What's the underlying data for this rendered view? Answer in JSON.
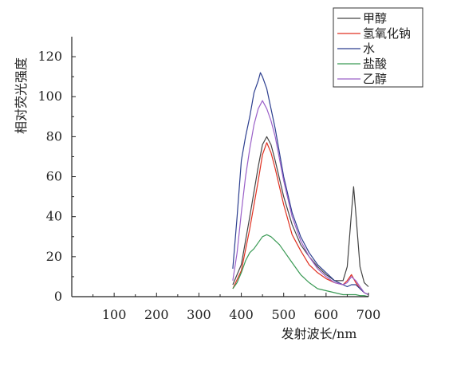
{
  "chart_data": {
    "type": "line",
    "title": "",
    "xlabel": "发射波长/nm",
    "ylabel": "相对荧光强度",
    "xlim": [
      0,
      700
    ],
    "ylim": [
      0,
      130
    ],
    "xticks": [
      100,
      200,
      300,
      400,
      500,
      600,
      700
    ],
    "yticks": [
      0,
      20,
      40,
      60,
      80,
      100,
      120
    ],
    "grid": false,
    "legend_position": "top-right",
    "series": [
      {
        "name": "甲醇",
        "color": "#444444",
        "x": [
          380,
          400,
          420,
          440,
          450,
          460,
          470,
          480,
          500,
          520,
          540,
          560,
          580,
          600,
          620,
          640,
          650,
          660,
          665,
          670,
          680,
          690,
          700
        ],
        "y": [
          6,
          16,
          40,
          65,
          76,
          80,
          76,
          68,
          50,
          36,
          26,
          20,
          15,
          11,
          8,
          8,
          15,
          42,
          55,
          42,
          15,
          7,
          5
        ]
      },
      {
        "name": "氢氧化钠",
        "color": "#e03020",
        "x": [
          380,
          400,
          420,
          440,
          450,
          460,
          470,
          480,
          500,
          520,
          540,
          560,
          580,
          600,
          620,
          640,
          650,
          660,
          670,
          680,
          690,
          700
        ],
        "y": [
          4,
          13,
          34,
          58,
          71,
          77,
          72,
          64,
          46,
          31,
          23,
          16,
          12,
          9,
          7,
          6,
          8,
          11,
          7,
          4,
          2,
          1
        ]
      },
      {
        "name": "水",
        "color": "#2c3e8f",
        "x": [
          380,
          390,
          400,
          410,
          420,
          430,
          440,
          445,
          450,
          460,
          470,
          480,
          500,
          520,
          540,
          560,
          580,
          600,
          620,
          640,
          650,
          660,
          670,
          680,
          690,
          700
        ],
        "y": [
          14,
          40,
          68,
          80,
          90,
          102,
          108,
          112,
          110,
          104,
          94,
          84,
          60,
          42,
          30,
          22,
          16,
          12,
          8,
          6,
          5,
          6,
          6,
          4,
          2,
          1
        ]
      },
      {
        "name": "盐酸",
        "color": "#3a9a55",
        "x": [
          380,
          390,
          400,
          410,
          420,
          430,
          440,
          450,
          460,
          470,
          480,
          490,
          500,
          520,
          540,
          560,
          580,
          600,
          620,
          640,
          650,
          660,
          670,
          680,
          690,
          700
        ],
        "y": [
          4,
          7,
          12,
          18,
          22,
          24,
          27,
          30,
          31,
          30,
          28,
          26,
          23,
          17,
          11,
          7,
          4,
          3,
          2,
          1,
          1,
          1,
          1,
          0.5,
          0.5,
          0
        ]
      },
      {
        "name": "乙醇",
        "color": "#9a60c8",
        "x": [
          380,
          390,
          400,
          410,
          420,
          430,
          440,
          450,
          455,
          460,
          470,
          480,
          500,
          520,
          540,
          560,
          580,
          600,
          620,
          640,
          650,
          660,
          670,
          680,
          690,
          700
        ],
        "y": [
          8,
          22,
          42,
          60,
          74,
          86,
          94,
          98,
          96,
          94,
          88,
          80,
          58,
          40,
          28,
          20,
          14,
          10,
          7,
          6,
          7,
          10,
          8,
          5,
          2,
          1
        ]
      }
    ]
  }
}
